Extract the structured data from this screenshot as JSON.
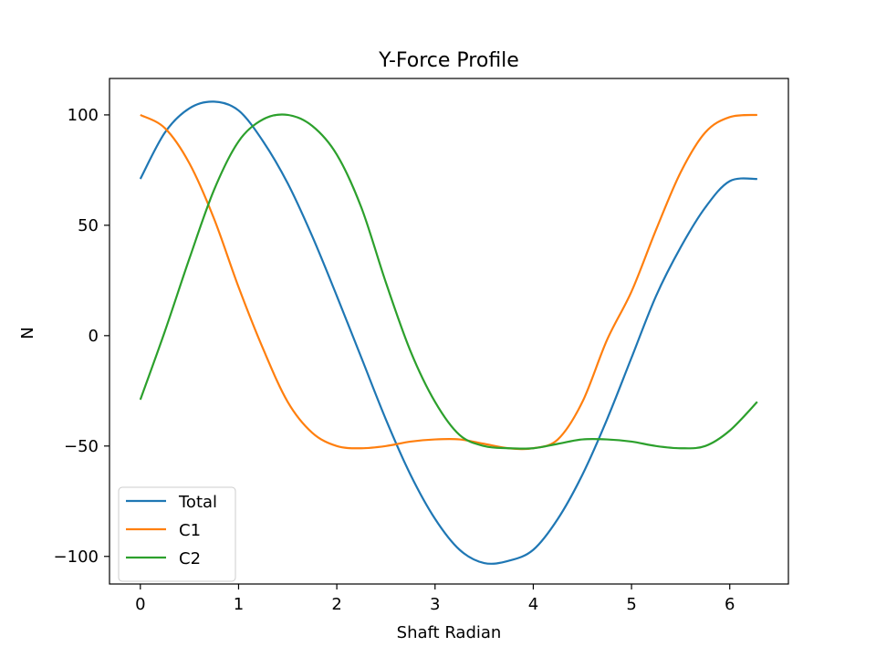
{
  "chart_data": {
    "type": "line",
    "title": "Y-Force Profile",
    "xlabel": "Shaft Radian",
    "ylabel": "N",
    "xlim": [
      -0.314,
      6.597
    ],
    "ylim": [
      -112.5,
      116.5
    ],
    "xticks": [
      0,
      1,
      2,
      3,
      4,
      5,
      6
    ],
    "xtick_labels": [
      "0",
      "1",
      "2",
      "3",
      "4",
      "5",
      "6"
    ],
    "yticks": [
      100,
      50,
      0,
      -50,
      -100
    ],
    "ytick_labels": [
      "100",
      "50",
      "0",
      "−50",
      "−100"
    ],
    "grid": false,
    "legend_position": "lower-left",
    "x": [
      0,
      0.25,
      0.5,
      0.75,
      1.0,
      1.25,
      1.5,
      1.75,
      2.0,
      2.25,
      2.5,
      2.75,
      3.0,
      3.25,
      3.5,
      3.75,
      4.0,
      4.25,
      4.5,
      4.75,
      5.0,
      5.25,
      5.5,
      5.75,
      6.0,
      6.28
    ],
    "series": [
      {
        "name": "Total",
        "color": "#1f77b4",
        "values": [
          71,
          92,
          103,
          106,
          102,
          88,
          69,
          45,
          18,
          -10,
          -38,
          -63,
          -83,
          -97,
          -103,
          -102,
          -97,
          -83,
          -63,
          -38,
          -10,
          18,
          40,
          58,
          70,
          71
        ]
      },
      {
        "name": "C1",
        "color": "#ff7f0e",
        "values": [
          100,
          94,
          78,
          53,
          22,
          -6,
          -30,
          -44,
          -50,
          -51,
          -50,
          -48,
          -47,
          -47,
          -49,
          -51,
          -51,
          -47,
          -30,
          -2,
          20,
          48,
          74,
          92,
          99,
          100
        ]
      },
      {
        "name": "C2",
        "color": "#2ca02c",
        "values": [
          -29,
          2,
          35,
          66,
          88,
          98,
          100,
          95,
          82,
          58,
          24,
          -7,
          -30,
          -45,
          -50,
          -51,
          -51,
          -49,
          -47,
          -47,
          -48,
          -50,
          -51,
          -50,
          -43,
          -30
        ]
      }
    ]
  }
}
